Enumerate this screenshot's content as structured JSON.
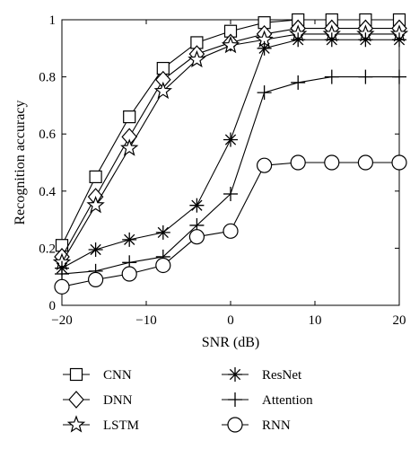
{
  "chart_data": {
    "type": "line",
    "xlabel": "SNR (dB)",
    "ylabel": "Recognition accuracy",
    "xlim": [
      -20,
      20
    ],
    "ylim": [
      0,
      1
    ],
    "x_ticks": [
      "−20",
      "−10",
      "0",
      "10",
      "20"
    ],
    "y_ticks": [
      "0",
      "0.2",
      "0.4",
      "0.6",
      "0.8",
      "1"
    ],
    "x_tick_values": [
      -20,
      -10,
      0,
      10,
      20
    ],
    "y_tick_values": [
      0,
      0.2,
      0.4,
      0.6,
      0.8,
      1
    ],
    "grid": false,
    "legend_placement": "bottom",
    "x": [
      -20,
      -16,
      -12,
      -8,
      -4,
      0,
      4,
      8,
      12,
      16,
      20
    ],
    "series": [
      {
        "name": "CNN",
        "marker": "square",
        "values": [
          0.21,
          0.45,
          0.66,
          0.83,
          0.92,
          0.96,
          0.99,
          1.0,
          1.0,
          1.0,
          1.0
        ]
      },
      {
        "name": "DNN",
        "marker": "diamond",
        "values": [
          0.17,
          0.38,
          0.59,
          0.79,
          0.88,
          0.92,
          0.95,
          0.97,
          0.97,
          0.97,
          0.97
        ]
      },
      {
        "name": "LSTM",
        "marker": "star",
        "values": [
          0.15,
          0.35,
          0.55,
          0.75,
          0.86,
          0.91,
          0.93,
          0.95,
          0.95,
          0.95,
          0.95
        ]
      },
      {
        "name": "ResNet",
        "marker": "asterisk",
        "values": [
          0.13,
          0.195,
          0.23,
          0.255,
          0.35,
          0.58,
          0.9,
          0.93,
          0.93,
          0.93,
          0.93
        ]
      },
      {
        "name": "Attention",
        "marker": "plus",
        "values": [
          0.11,
          0.12,
          0.15,
          0.17,
          0.28,
          0.39,
          0.745,
          0.78,
          0.8,
          0.8,
          0.8
        ]
      },
      {
        "name": "RNN",
        "marker": "circle",
        "values": [
          0.065,
          0.09,
          0.11,
          0.14,
          0.24,
          0.26,
          0.49,
          0.5,
          0.5,
          0.5,
          0.5
        ]
      }
    ]
  }
}
